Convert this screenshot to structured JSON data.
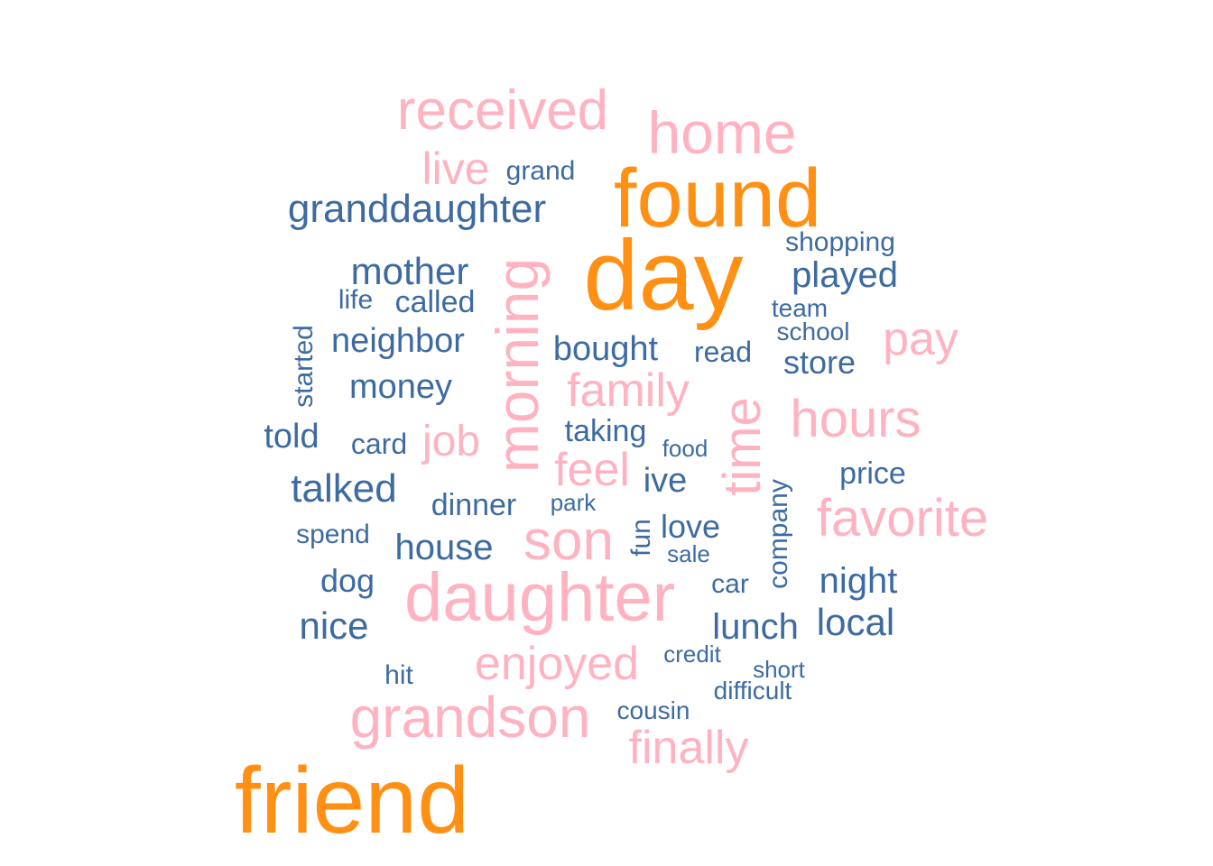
{
  "palette": {
    "high": "#FF9014",
    "mid": "#FFB3C1",
    "low": "#3D6BA1"
  },
  "words": [
    {
      "text": "friend",
      "tier": "high",
      "rotated": false
    },
    {
      "text": "day",
      "tier": "high",
      "rotated": false
    },
    {
      "text": "found",
      "tier": "high",
      "rotated": false
    },
    {
      "text": "daughter",
      "tier": "mid",
      "rotated": false
    },
    {
      "text": "grandson",
      "tier": "mid",
      "rotated": false
    },
    {
      "text": "home",
      "tier": "mid",
      "rotated": false
    },
    {
      "text": "received",
      "tier": "mid",
      "rotated": false
    },
    {
      "text": "son",
      "tier": "mid",
      "rotated": false
    },
    {
      "text": "favorite",
      "tier": "mid",
      "rotated": false
    },
    {
      "text": "morning",
      "tier": "mid",
      "rotated": true
    },
    {
      "text": "hours",
      "tier": "mid",
      "rotated": false
    },
    {
      "text": "time",
      "tier": "mid",
      "rotated": true
    },
    {
      "text": "enjoyed",
      "tier": "mid",
      "rotated": false
    },
    {
      "text": "family",
      "tier": "mid",
      "rotated": false
    },
    {
      "text": "finally",
      "tier": "mid",
      "rotated": false
    },
    {
      "text": "feel",
      "tier": "mid",
      "rotated": false
    },
    {
      "text": "pay",
      "tier": "mid",
      "rotated": false
    },
    {
      "text": "live",
      "tier": "mid",
      "rotated": false
    },
    {
      "text": "job",
      "tier": "mid",
      "rotated": false
    },
    {
      "text": "granddaughter",
      "tier": "low",
      "rotated": false
    },
    {
      "text": "mother",
      "tier": "low",
      "rotated": false
    },
    {
      "text": "played",
      "tier": "low",
      "rotated": false
    },
    {
      "text": "talked",
      "tier": "low",
      "rotated": false
    },
    {
      "text": "nice",
      "tier": "low",
      "rotated": false
    },
    {
      "text": "lunch",
      "tier": "low",
      "rotated": false
    },
    {
      "text": "local",
      "tier": "low",
      "rotated": false
    },
    {
      "text": "night",
      "tier": "low",
      "rotated": false
    },
    {
      "text": "neighbor",
      "tier": "low",
      "rotated": false
    },
    {
      "text": "bought",
      "tier": "low",
      "rotated": false
    },
    {
      "text": "house",
      "tier": "low",
      "rotated": false
    },
    {
      "text": "told",
      "tier": "low",
      "rotated": false
    },
    {
      "text": "money",
      "tier": "low",
      "rotated": false
    },
    {
      "text": "store",
      "tier": "low",
      "rotated": false
    },
    {
      "text": "called",
      "tier": "low",
      "rotated": false
    },
    {
      "text": "price",
      "tier": "low",
      "rotated": false
    },
    {
      "text": "taking",
      "tier": "low",
      "rotated": false
    },
    {
      "text": "love",
      "tier": "low",
      "rotated": false
    },
    {
      "text": "ive",
      "tier": "low",
      "rotated": false
    },
    {
      "text": "dinner",
      "tier": "low",
      "rotated": false
    },
    {
      "text": "dog",
      "tier": "low",
      "rotated": false
    },
    {
      "text": "company",
      "tier": "low",
      "rotated": true
    },
    {
      "text": "fun",
      "tier": "low",
      "rotated": true
    },
    {
      "text": "read",
      "tier": "low",
      "rotated": false
    },
    {
      "text": "shopping",
      "tier": "low",
      "rotated": false
    },
    {
      "text": "card",
      "tier": "low",
      "rotated": false
    },
    {
      "text": "grand",
      "tier": "low",
      "rotated": false
    },
    {
      "text": "life",
      "tier": "low",
      "rotated": false
    },
    {
      "text": "car",
      "tier": "low",
      "rotated": false
    },
    {
      "text": "started",
      "tier": "low",
      "rotated": true
    },
    {
      "text": "spend",
      "tier": "low",
      "rotated": false
    },
    {
      "text": "team",
      "tier": "low",
      "rotated": false
    },
    {
      "text": "school",
      "tier": "low",
      "rotated": false
    },
    {
      "text": "hit",
      "tier": "low",
      "rotated": false
    },
    {
      "text": "difficult",
      "tier": "low",
      "rotated": false
    },
    {
      "text": "cousin",
      "tier": "low",
      "rotated": false
    },
    {
      "text": "park",
      "tier": "low",
      "rotated": false
    },
    {
      "text": "food",
      "tier": "low",
      "rotated": false
    },
    {
      "text": "sale",
      "tier": "low",
      "rotated": false
    },
    {
      "text": "credit",
      "tier": "low",
      "rotated": false
    },
    {
      "text": "short",
      "tier": "low",
      "rotated": false
    }
  ]
}
